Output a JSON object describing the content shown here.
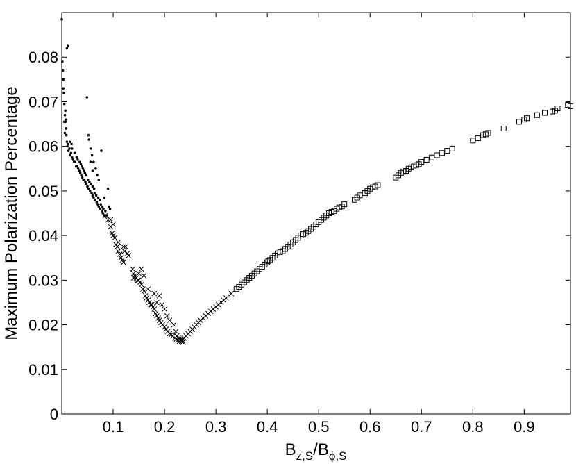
{
  "chart_data": {
    "type": "scatter",
    "title": "",
    "xlabel": {
      "base1": "B",
      "sub1": "z,S",
      "sep": "/",
      "base2": "B",
      "sub2": "ϕ,S"
    },
    "ylabel": "Maximum Polarization Percentage",
    "xlim": [
      0,
      0.99
    ],
    "ylim": [
      0,
      0.09
    ],
    "grid": false,
    "legend": "none",
    "x_ticks": [
      0.1,
      0.2,
      0.3,
      0.4,
      0.5,
      0.6,
      0.7,
      0.8,
      0.9
    ],
    "x_tick_labels": [
      "0.1",
      "0.2",
      "0.3",
      "0.4",
      "0.5",
      "0.6",
      "0.7",
      "0.8",
      "0.9"
    ],
    "y_ticks": [
      0,
      0.01,
      0.02,
      0.03,
      0.04,
      0.05,
      0.06,
      0.07,
      0.08
    ],
    "y_tick_labels": [
      "0",
      "0.01",
      "0.02",
      "0.03",
      "0.04",
      "0.05",
      "0.06",
      "0.07",
      "0.08"
    ],
    "series": [
      {
        "marker": "dot",
        "color": "#000000",
        "points": [
          [
            0.0,
            0.0885
          ],
          [
            0.001,
            0.079
          ],
          [
            0.002,
            0.077
          ],
          [
            0.003,
            0.075
          ],
          [
            0.004,
            0.072
          ],
          [
            0.005,
            0.0695
          ],
          [
            0.006,
            0.067
          ],
          [
            0.007,
            0.0655
          ],
          [
            0.008,
            0.064
          ],
          [
            0.009,
            0.0625
          ],
          [
            0.01,
            0.061
          ],
          [
            0.011,
            0.06
          ],
          [
            0.012,
            0.0605
          ],
          [
            0.013,
            0.059
          ],
          [
            0.015,
            0.0595
          ],
          [
            0.016,
            0.058
          ],
          [
            0.018,
            0.0585
          ],
          [
            0.02,
            0.0575
          ],
          [
            0.022,
            0.057
          ],
          [
            0.024,
            0.0565
          ],
          [
            0.026,
            0.0565
          ],
          [
            0.028,
            0.0555
          ],
          [
            0.03,
            0.0555
          ],
          [
            0.032,
            0.055
          ],
          [
            0.034,
            0.0545
          ],
          [
            0.036,
            0.054
          ],
          [
            0.038,
            0.0535
          ],
          [
            0.04,
            0.053
          ],
          [
            0.042,
            0.0525
          ],
          [
            0.044,
            0.0525
          ],
          [
            0.046,
            0.052
          ],
          [
            0.048,
            0.0515
          ],
          [
            0.05,
            0.051
          ],
          [
            0.052,
            0.0505
          ],
          [
            0.055,
            0.05
          ],
          [
            0.058,
            0.0495
          ],
          [
            0.06,
            0.049
          ],
          [
            0.062,
            0.0485
          ],
          [
            0.065,
            0.048
          ],
          [
            0.068,
            0.0475
          ],
          [
            0.07,
            0.047
          ],
          [
            0.072,
            0.0465
          ],
          [
            0.075,
            0.046
          ],
          [
            0.078,
            0.0455
          ],
          [
            0.08,
            0.045
          ],
          [
            0.083,
            0.0445
          ],
          [
            0.012,
            0.0825
          ],
          [
            0.01,
            0.082
          ],
          [
            0.049,
            0.071
          ],
          [
            0.052,
            0.0625
          ],
          [
            0.053,
            0.0615
          ],
          [
            0.056,
            0.0595
          ],
          [
            0.059,
            0.058
          ],
          [
            0.062,
            0.0565
          ],
          [
            0.066,
            0.055
          ],
          [
            0.069,
            0.0535
          ],
          [
            0.072,
            0.0525
          ],
          [
            0.077,
            0.059
          ],
          [
            0.083,
            0.0485
          ],
          [
            0.09,
            0.0505
          ],
          [
            0.092,
            0.0465
          ],
          [
            0.094,
            0.046
          ],
          [
            0.005,
            0.0655
          ],
          [
            0.003,
            0.073
          ],
          [
            0.007,
            0.068
          ],
          [
            0.008,
            0.066
          ],
          [
            0.006,
            0.063
          ],
          [
            0.016,
            0.061
          ],
          [
            0.019,
            0.0605
          ],
          [
            0.02,
            0.0595
          ],
          [
            0.025,
            0.0585
          ],
          [
            0.029,
            0.0575
          ],
          [
            0.031,
            0.057
          ],
          [
            0.035,
            0.0565
          ],
          [
            0.037,
            0.056
          ],
          [
            0.039,
            0.0555
          ],
          [
            0.041,
            0.055
          ],
          [
            0.043,
            0.0545
          ],
          [
            0.045,
            0.054
          ],
          [
            0.047,
            0.0535
          ],
          [
            0.051,
            0.0525
          ],
          [
            0.054,
            0.052
          ],
          [
            0.057,
            0.0515
          ],
          [
            0.06,
            0.051
          ],
          [
            0.063,
            0.0505
          ],
          [
            0.064,
            0.0495
          ],
          [
            0.067,
            0.049
          ],
          [
            0.071,
            0.0485
          ],
          [
            0.074,
            0.048
          ],
          [
            0.076,
            0.047
          ],
          [
            0.079,
            0.0465
          ],
          [
            0.081,
            0.046
          ],
          [
            0.085,
            0.0455
          ],
          [
            0.087,
            0.0445
          ],
          [
            0.056,
            0.0565
          ],
          [
            0.06,
            0.0545
          ]
        ]
      },
      {
        "marker": "x",
        "color": "#000000",
        "points": [
          [
            0.085,
            0.0445
          ],
          [
            0.09,
            0.0435
          ],
          [
            0.095,
            0.042
          ],
          [
            0.098,
            0.0405
          ],
          [
            0.1,
            0.04
          ],
          [
            0.103,
            0.0395
          ],
          [
            0.105,
            0.038
          ],
          [
            0.108,
            0.0375
          ],
          [
            0.11,
            0.0365
          ],
          [
            0.113,
            0.0358
          ],
          [
            0.115,
            0.035
          ],
          [
            0.118,
            0.0345
          ],
          [
            0.12,
            0.034
          ],
          [
            0.11,
            0.0385
          ],
          [
            0.122,
            0.0365
          ],
          [
            0.124,
            0.0375
          ],
          [
            0.128,
            0.036
          ],
          [
            0.13,
            0.0355
          ],
          [
            0.138,
            0.0325
          ],
          [
            0.14,
            0.0315
          ],
          [
            0.142,
            0.031
          ],
          [
            0.145,
            0.0305
          ],
          [
            0.148,
            0.03
          ],
          [
            0.15,
            0.03
          ],
          [
            0.152,
            0.0295
          ],
          [
            0.155,
            0.029
          ],
          [
            0.158,
            0.028
          ],
          [
            0.16,
            0.0275
          ],
          [
            0.163,
            0.0265
          ],
          [
            0.165,
            0.026
          ],
          [
            0.168,
            0.0255
          ],
          [
            0.17,
            0.025
          ],
          [
            0.173,
            0.0245
          ],
          [
            0.175,
            0.0245
          ],
          [
            0.178,
            0.024
          ],
          [
            0.18,
            0.0235
          ],
          [
            0.183,
            0.0225
          ],
          [
            0.185,
            0.022
          ],
          [
            0.188,
            0.0215
          ],
          [
            0.19,
            0.021
          ],
          [
            0.193,
            0.0205
          ],
          [
            0.196,
            0.02
          ],
          [
            0.2,
            0.0195
          ],
          [
            0.203,
            0.019
          ],
          [
            0.206,
            0.0185
          ],
          [
            0.21,
            0.018
          ],
          [
            0.213,
            0.0178
          ],
          [
            0.216,
            0.0175
          ],
          [
            0.22,
            0.017
          ],
          [
            0.223,
            0.0168
          ],
          [
            0.226,
            0.0165
          ],
          [
            0.229,
            0.0163
          ],
          [
            0.232,
            0.0165
          ],
          [
            0.235,
            0.0168
          ],
          [
            0.238,
            0.017
          ],
          [
            0.242,
            0.0175
          ],
          [
            0.246,
            0.018
          ],
          [
            0.25,
            0.0185
          ],
          [
            0.254,
            0.019
          ],
          [
            0.258,
            0.0195
          ],
          [
            0.262,
            0.02
          ],
          [
            0.266,
            0.0205
          ],
          [
            0.27,
            0.021
          ],
          [
            0.275,
            0.0215
          ],
          [
            0.28,
            0.022
          ],
          [
            0.285,
            0.0225
          ],
          [
            0.29,
            0.023
          ],
          [
            0.295,
            0.0235
          ],
          [
            0.3,
            0.024
          ],
          [
            0.305,
            0.0245
          ],
          [
            0.31,
            0.025
          ],
          [
            0.315,
            0.0255
          ],
          [
            0.32,
            0.026
          ],
          [
            0.33,
            0.027
          ],
          [
            0.14,
            0.0305
          ],
          [
            0.15,
            0.0315
          ],
          [
            0.155,
            0.0325
          ],
          [
            0.16,
            0.031
          ],
          [
            0.168,
            0.028
          ],
          [
            0.18,
            0.027
          ],
          [
            0.19,
            0.0265
          ],
          [
            0.185,
            0.025
          ],
          [
            0.195,
            0.0245
          ],
          [
            0.2,
            0.0235
          ],
          [
            0.205,
            0.022
          ],
          [
            0.21,
            0.021
          ],
          [
            0.218,
            0.02
          ],
          [
            0.222,
            0.0185
          ],
          [
            0.224,
            0.0175
          ],
          [
            0.227,
            0.017
          ],
          [
            0.23,
            0.0167
          ],
          [
            0.233,
            0.0163
          ],
          [
            0.236,
            0.0162
          ],
          [
            0.1,
            0.0425
          ],
          [
            0.095,
            0.0435
          ],
          [
            0.12,
            0.0375
          ]
        ]
      },
      {
        "marker": "square",
        "color": "#000000",
        "points": [
          [
            0.34,
            0.028
          ],
          [
            0.345,
            0.0285
          ],
          [
            0.35,
            0.029
          ],
          [
            0.355,
            0.0295
          ],
          [
            0.36,
            0.03
          ],
          [
            0.365,
            0.0305
          ],
          [
            0.37,
            0.031
          ],
          [
            0.375,
            0.0315
          ],
          [
            0.38,
            0.032
          ],
          [
            0.385,
            0.0325
          ],
          [
            0.39,
            0.033
          ],
          [
            0.395,
            0.0335
          ],
          [
            0.4,
            0.034
          ],
          [
            0.402,
            0.0343
          ],
          [
            0.405,
            0.0345
          ],
          [
            0.41,
            0.035
          ],
          [
            0.415,
            0.0355
          ],
          [
            0.42,
            0.036
          ],
          [
            0.425,
            0.0363
          ],
          [
            0.43,
            0.0365
          ],
          [
            0.435,
            0.037
          ],
          [
            0.44,
            0.0375
          ],
          [
            0.445,
            0.038
          ],
          [
            0.45,
            0.0385
          ],
          [
            0.455,
            0.039
          ],
          [
            0.46,
            0.0395
          ],
          [
            0.465,
            0.04
          ],
          [
            0.47,
            0.0403
          ],
          [
            0.475,
            0.0406
          ],
          [
            0.48,
            0.041
          ],
          [
            0.485,
            0.0415
          ],
          [
            0.49,
            0.042
          ],
          [
            0.495,
            0.0425
          ],
          [
            0.5,
            0.043
          ],
          [
            0.505,
            0.0435
          ],
          [
            0.51,
            0.044
          ],
          [
            0.515,
            0.0445
          ],
          [
            0.52,
            0.045
          ],
          [
            0.525,
            0.0453
          ],
          [
            0.53,
            0.0455
          ],
          [
            0.535,
            0.046
          ],
          [
            0.54,
            0.0463
          ],
          [
            0.545,
            0.0465
          ],
          [
            0.55,
            0.047
          ],
          [
            0.57,
            0.048
          ],
          [
            0.575,
            0.0485
          ],
          [
            0.58,
            0.049
          ],
          [
            0.59,
            0.0495
          ],
          [
            0.595,
            0.05
          ],
          [
            0.6,
            0.0505
          ],
          [
            0.605,
            0.0508
          ],
          [
            0.61,
            0.051
          ],
          [
            0.615,
            0.0513
          ],
          [
            0.65,
            0.053
          ],
          [
            0.655,
            0.0535
          ],
          [
            0.66,
            0.054
          ],
          [
            0.665,
            0.0543
          ],
          [
            0.67,
            0.0545
          ],
          [
            0.675,
            0.055
          ],
          [
            0.68,
            0.0553
          ],
          [
            0.685,
            0.0555
          ],
          [
            0.69,
            0.0558
          ],
          [
            0.695,
            0.056
          ],
          [
            0.7,
            0.0565
          ],
          [
            0.71,
            0.057
          ],
          [
            0.72,
            0.0575
          ],
          [
            0.73,
            0.058
          ],
          [
            0.74,
            0.0585
          ],
          [
            0.75,
            0.059
          ],
          [
            0.76,
            0.0595
          ],
          [
            0.8,
            0.0613
          ],
          [
            0.81,
            0.0618
          ],
          [
            0.82,
            0.0625
          ],
          [
            0.825,
            0.0627
          ],
          [
            0.83,
            0.063
          ],
          [
            0.86,
            0.064
          ],
          [
            0.89,
            0.0655
          ],
          [
            0.9,
            0.066
          ],
          [
            0.905,
            0.0663
          ],
          [
            0.925,
            0.067
          ],
          [
            0.94,
            0.0675
          ],
          [
            0.955,
            0.0678
          ],
          [
            0.96,
            0.068
          ],
          [
            0.965,
            0.0685
          ],
          [
            0.985,
            0.0693
          ],
          [
            0.99,
            0.069
          ]
        ]
      }
    ]
  }
}
